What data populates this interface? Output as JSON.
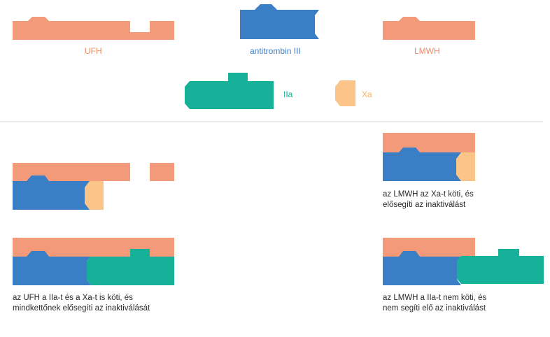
{
  "labels": {
    "ufh": "UFH",
    "antithrombin": "antitrombin III",
    "lmwh": "LMWH",
    "iia": "IIa",
    "xa": "Xa"
  },
  "captions": {
    "lmwh_xa_line1": "az LMWH az Xa-t köti, és",
    "lmwh_xa_line2": "elősegíti az inaktiválást",
    "ufh_both_line1": "az UFH a IIa-t és a Xa-t is köti, és",
    "ufh_both_line2": "mindkettőnek elősegíti az inaktiválását",
    "lmwh_iia_line1": "az LMWH a IIa-t nem köti, és",
    "lmwh_iia_line2": "nem segíti elő az inaktiválást"
  },
  "colors": {
    "heparin": "#f39a7a",
    "antithrombin": "#3a7ec6",
    "thrombin": "#16b198",
    "factor_xa": "#fbc58a",
    "divider": "#d9d9d9",
    "label_ufh": "#f08a66",
    "label_at": "#3a7ec6",
    "label_iia": "#16b198",
    "label_xa": "#f5b26a"
  }
}
